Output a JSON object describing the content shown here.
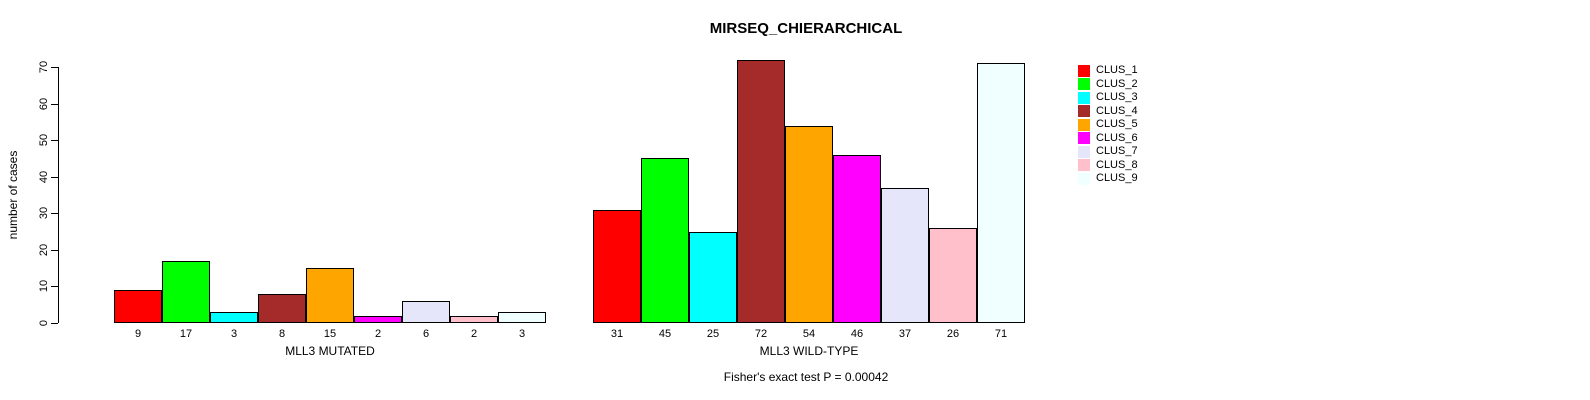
{
  "chart_data": {
    "type": "bar",
    "title": "MIRSEQ_CHIERARCHICAL",
    "ylabel": "number of cases",
    "ylim": [
      0,
      70
    ],
    "yticks": [
      0,
      10,
      20,
      30,
      40,
      50,
      60,
      70
    ],
    "grid": false,
    "legend_position": "right-outside",
    "bar_border_color": "#000000",
    "clusters": [
      {
        "name": "CLUS_1",
        "color": "#FF0000"
      },
      {
        "name": "CLUS_2",
        "color": "#00FF00"
      },
      {
        "name": "CLUS_3",
        "color": "#00FFFF"
      },
      {
        "name": "CLUS_4",
        "color": "#A52A2A"
      },
      {
        "name": "CLUS_5",
        "color": "#FFA500"
      },
      {
        "name": "CLUS_6",
        "color": "#FF00FF"
      },
      {
        "name": "CLUS_7",
        "color": "#E6E6FA"
      },
      {
        "name": "CLUS_8",
        "color": "#FFC0CB"
      },
      {
        "name": "CLUS_9",
        "color": "#F0FFFF"
      }
    ],
    "groups": [
      {
        "label": "MLL3 MUTATED",
        "values": [
          9,
          17,
          3,
          8,
          15,
          2,
          6,
          2,
          3
        ]
      },
      {
        "label": "MLL3 WILD-TYPE",
        "values": [
          31,
          45,
          25,
          72,
          54,
          46,
          37,
          26,
          71
        ]
      }
    ],
    "annotation": "Fisher's exact test P = 0.00042"
  }
}
